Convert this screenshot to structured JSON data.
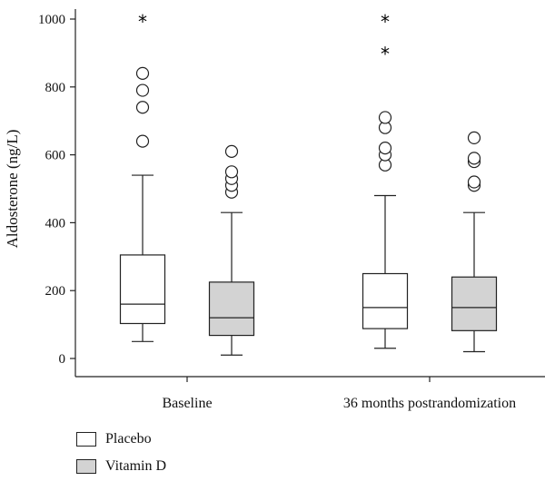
{
  "chart_data": {
    "type": "box",
    "ylabel": "Aldosterone (ng/L)",
    "ylim": [
      0,
      1000
    ],
    "yticks": [
      0,
      200,
      400,
      600,
      800,
      1000
    ],
    "categories": [
      "Baseline",
      "36 months postrandomization"
    ],
    "series": [
      {
        "name": "Placebo",
        "color": "#ffffff",
        "boxes": [
          {
            "min": 50,
            "q1": 103,
            "median": 160,
            "q3": 305,
            "max": 540,
            "outliers": [
              640,
              740,
              790,
              840
            ],
            "extremes": [
              1000
            ]
          },
          {
            "min": 30,
            "q1": 88,
            "median": 150,
            "q3": 250,
            "max": 480,
            "outliers": [
              570,
              600,
              620,
              680,
              710
            ],
            "extremes": [
              905,
              1000
            ]
          }
        ]
      },
      {
        "name": "Vitamin D",
        "color": "#d3d3d3",
        "boxes": [
          {
            "min": 10,
            "q1": 68,
            "median": 120,
            "q3": 225,
            "max": 430,
            "outliers": [
              490,
              510,
              530,
              550,
              610
            ],
            "extremes": []
          },
          {
            "min": 20,
            "q1": 82,
            "median": 150,
            "q3": 240,
            "max": 430,
            "outliers": [
              510,
              520,
              580,
              590,
              650
            ],
            "extremes": []
          }
        ]
      }
    ],
    "grid": false,
    "legend_position": "bottom-left"
  }
}
